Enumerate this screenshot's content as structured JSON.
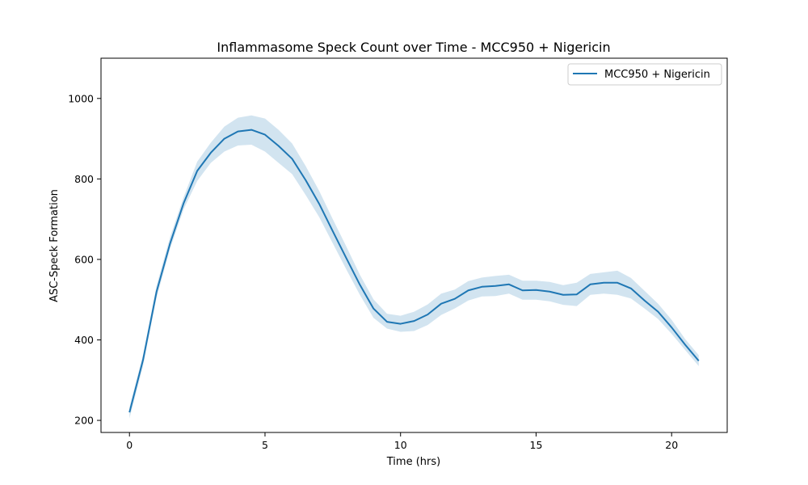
{
  "chart_data": {
    "type": "line",
    "title": "Inflammasome Speck Count over Time - MCC950 + Nigericin",
    "xlabel": "Time (hrs)",
    "ylabel": "ASC-Speck Formation",
    "xlim": [
      -1.05,
      22.05
    ],
    "ylim": [
      170,
      1100
    ],
    "xticks": [
      0,
      5,
      10,
      15,
      20
    ],
    "yticks": [
      200,
      400,
      600,
      800,
      1000
    ],
    "grid": false,
    "legend_position": "upper right",
    "series": [
      {
        "name": "MCC950 + Nigericin",
        "color": "#1f77b4",
        "band_color": "#1f77b4",
        "x": [
          0,
          0.5,
          1,
          1.5,
          2,
          2.5,
          3,
          3.5,
          4,
          4.5,
          5,
          5.5,
          6,
          6.5,
          7,
          7.5,
          8,
          8.5,
          9,
          9.5,
          10,
          10.5,
          11,
          11.5,
          12,
          12.5,
          13,
          13.5,
          14,
          14.5,
          15,
          15.5,
          16,
          16.5,
          17,
          17.5,
          18,
          18.5,
          19,
          19.5,
          20,
          20.5,
          21
        ],
        "y": [
          220,
          350,
          520,
          640,
          740,
          820,
          865,
          900,
          918,
          922,
          910,
          882,
          850,
          797,
          738,
          670,
          603,
          537,
          478,
          445,
          440,
          447,
          463,
          490,
          502,
          523,
          532,
          534,
          538,
          523,
          524,
          520,
          512,
          513,
          538,
          542,
          542,
          528,
          498,
          470,
          431,
          388,
          348
        ],
        "lower": [
          205,
          335,
          505,
          627,
          725,
          795,
          840,
          868,
          883,
          885,
          868,
          840,
          812,
          760,
          705,
          640,
          575,
          512,
          455,
          428,
          420,
          422,
          437,
          462,
          478,
          498,
          508,
          509,
          515,
          500,
          500,
          496,
          487,
          484,
          512,
          515,
          512,
          503,
          478,
          452,
          415,
          375,
          335
        ],
        "upper": [
          233,
          363,
          535,
          656,
          755,
          843,
          890,
          930,
          952,
          958,
          950,
          922,
          888,
          832,
          770,
          700,
          632,
          562,
          501,
          465,
          460,
          470,
          488,
          515,
          525,
          546,
          555,
          559,
          562,
          547,
          547,
          544,
          536,
          542,
          564,
          568,
          572,
          554,
          522,
          490,
          450,
          402,
          362
        ]
      }
    ]
  }
}
